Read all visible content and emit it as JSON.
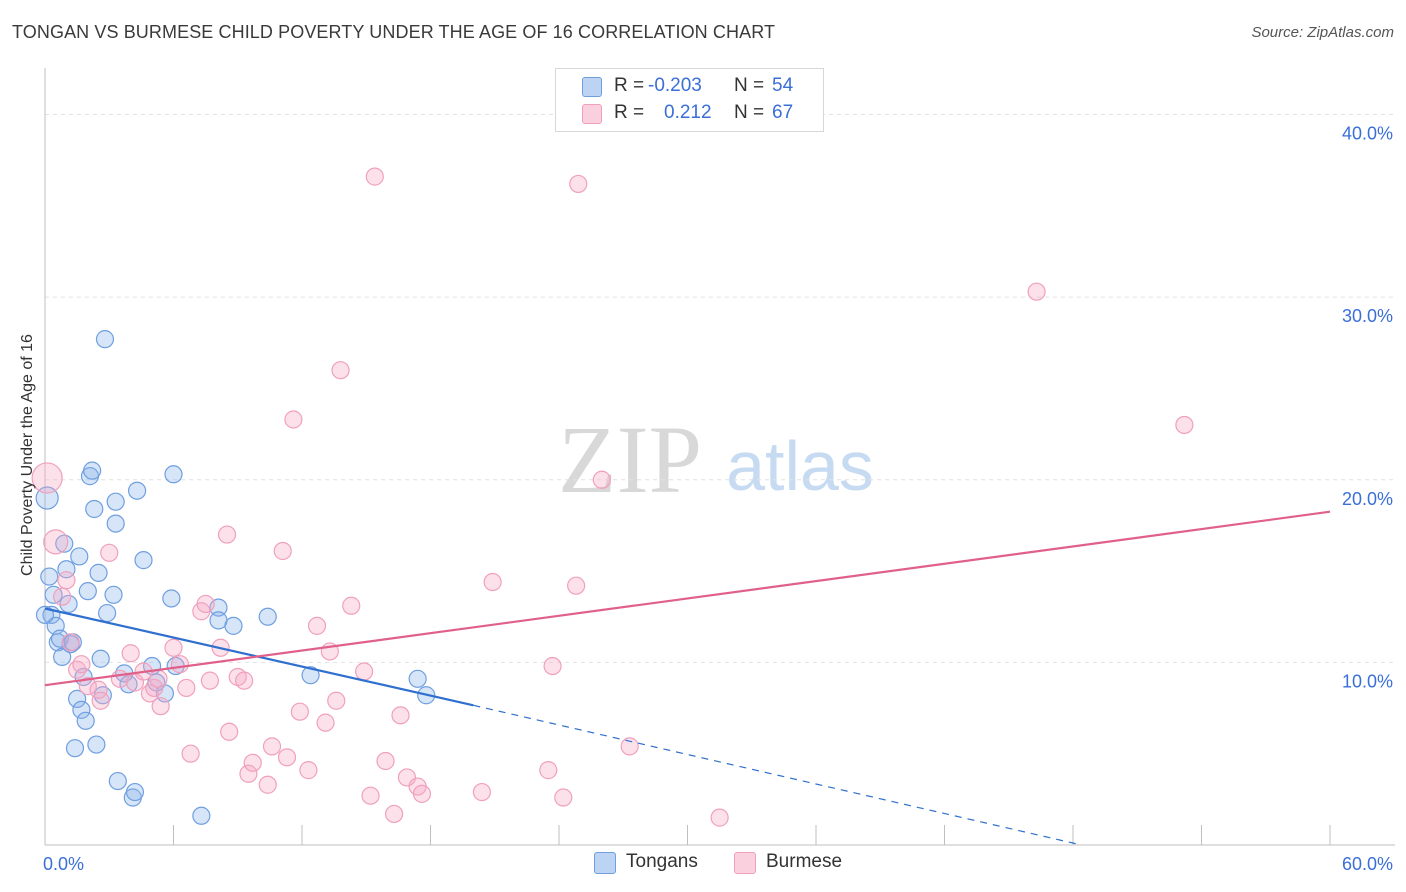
{
  "title": "TONGAN VS BURMESE CHILD POVERTY UNDER THE AGE OF 16 CORRELATION CHART",
  "source": "Source: ZipAtlas.com",
  "watermark": {
    "zip": "ZIP",
    "atlas": "atlas"
  },
  "legend": {
    "tongans": {
      "r_label": "R =",
      "r_value": "-0.203",
      "n_label": "N =",
      "n_value": "54"
    },
    "burmese": {
      "r_label": "R =",
      "r_value": "0.212",
      "n_label": "N =",
      "n_value": "67"
    }
  },
  "bottom_legend": {
    "tongans": "Tongans",
    "burmese": "Burmese"
  },
  "chart_data": {
    "type": "scatter",
    "title": "TONGAN VS BURMESE CHILD POVERTY UNDER THE AGE OF 16 CORRELATION CHART",
    "xlabel": "",
    "ylabel": "Child Poverty Under the Age of 16",
    "xlim": [
      0,
      60
    ],
    "ylim": [
      0,
      42
    ],
    "x_tick_labels": [
      "0.0%",
      "60.0%"
    ],
    "y_ticks": [
      10,
      20,
      30,
      40
    ],
    "y_tick_labels": [
      "10.0%",
      "20.0%",
      "30.0%",
      "40.0%"
    ],
    "grid": true,
    "colors": {
      "tongans": "#6f9fe0",
      "tongans_line": "#2f6fce",
      "burmese": "#f0a0bc",
      "burmese_line": "#e0608a",
      "tick_label": "#3a6fd8"
    },
    "series": [
      {
        "name": "Tongans",
        "points": [
          [
            0.1,
            19.0
          ],
          [
            0.2,
            14.7
          ],
          [
            0.3,
            12.6
          ],
          [
            0.4,
            13.7
          ],
          [
            0.5,
            12.0
          ],
          [
            0.6,
            11.1
          ],
          [
            0.7,
            11.3
          ],
          [
            0.8,
            10.3
          ],
          [
            0.9,
            16.5
          ],
          [
            1.0,
            15.1
          ],
          [
            1.1,
            13.2
          ],
          [
            1.2,
            11.0
          ],
          [
            1.3,
            11.1
          ],
          [
            1.4,
            5.3
          ],
          [
            1.5,
            8.0
          ],
          [
            1.6,
            15.8
          ],
          [
            1.7,
            7.4
          ],
          [
            1.8,
            9.2
          ],
          [
            1.9,
            6.8
          ],
          [
            2.0,
            13.9
          ],
          [
            2.1,
            20.2
          ],
          [
            2.2,
            20.5
          ],
          [
            2.3,
            18.4
          ],
          [
            2.4,
            5.5
          ],
          [
            2.5,
            14.9
          ],
          [
            2.6,
            10.2
          ],
          [
            2.7,
            8.2
          ],
          [
            2.8,
            27.7
          ],
          [
            2.9,
            12.7
          ],
          [
            3.2,
            13.7
          ],
          [
            3.3,
            18.8
          ],
          [
            3.3,
            17.6
          ],
          [
            3.4,
            3.5
          ],
          [
            3.7,
            9.4
          ],
          [
            3.9,
            8.8
          ],
          [
            4.1,
            2.6
          ],
          [
            4.2,
            2.9
          ],
          [
            4.3,
            19.4
          ],
          [
            4.6,
            15.6
          ],
          [
            5.0,
            9.8
          ],
          [
            5.2,
            8.9
          ],
          [
            5.6,
            8.3
          ],
          [
            5.9,
            13.5
          ],
          [
            6.0,
            20.3
          ],
          [
            6.1,
            9.8
          ],
          [
            7.3,
            1.6
          ],
          [
            8.1,
            13.0
          ],
          [
            8.1,
            12.3
          ],
          [
            8.8,
            12.0
          ],
          [
            10.4,
            12.5
          ],
          [
            12.4,
            9.3
          ],
          [
            17.4,
            9.1
          ],
          [
            17.8,
            8.2
          ],
          [
            0.0,
            12.6
          ]
        ]
      },
      {
        "name": "Burmese",
        "points": [
          [
            0.1,
            20.1
          ],
          [
            0.5,
            16.6
          ],
          [
            0.8,
            13.6
          ],
          [
            1.0,
            14.5
          ],
          [
            1.2,
            11.1
          ],
          [
            1.5,
            9.6
          ],
          [
            1.7,
            9.9
          ],
          [
            2.0,
            8.7
          ],
          [
            2.5,
            8.5
          ],
          [
            2.6,
            7.9
          ],
          [
            3.0,
            16.0
          ],
          [
            3.5,
            9.1
          ],
          [
            4.0,
            10.5
          ],
          [
            4.2,
            8.9
          ],
          [
            4.6,
            9.5
          ],
          [
            4.9,
            8.3
          ],
          [
            5.1,
            8.6
          ],
          [
            5.3,
            9.1
          ],
          [
            5.4,
            7.6
          ],
          [
            6.0,
            10.8
          ],
          [
            6.3,
            9.9
          ],
          [
            6.6,
            8.6
          ],
          [
            6.8,
            5.0
          ],
          [
            7.3,
            12.8
          ],
          [
            7.5,
            13.2
          ],
          [
            7.7,
            9.0
          ],
          [
            8.2,
            10.8
          ],
          [
            8.5,
            17.0
          ],
          [
            8.6,
            6.2
          ],
          [
            9.0,
            9.2
          ],
          [
            9.3,
            9.0
          ],
          [
            9.5,
            3.9
          ],
          [
            9.7,
            4.5
          ],
          [
            10.4,
            3.3
          ],
          [
            10.6,
            5.4
          ],
          [
            11.1,
            16.1
          ],
          [
            11.3,
            4.8
          ],
          [
            11.6,
            23.3
          ],
          [
            11.9,
            7.3
          ],
          [
            12.3,
            4.1
          ],
          [
            12.7,
            12.0
          ],
          [
            13.1,
            6.7
          ],
          [
            13.3,
            10.6
          ],
          [
            13.6,
            7.9
          ],
          [
            13.8,
            26.0
          ],
          [
            14.3,
            13.1
          ],
          [
            14.9,
            9.5
          ],
          [
            15.2,
            2.7
          ],
          [
            15.4,
            36.6
          ],
          [
            15.9,
            4.6
          ],
          [
            16.3,
            1.7
          ],
          [
            16.6,
            7.1
          ],
          [
            16.9,
            3.7
          ],
          [
            17.4,
            3.2
          ],
          [
            17.6,
            2.8
          ],
          [
            20.9,
            14.4
          ],
          [
            20.4,
            2.9
          ],
          [
            23.5,
            4.1
          ],
          [
            23.7,
            9.8
          ],
          [
            24.2,
            2.6
          ],
          [
            24.8,
            14.2
          ],
          [
            24.9,
            36.2
          ],
          [
            26.0,
            20.0
          ],
          [
            27.3,
            5.4
          ],
          [
            31.5,
            1.5
          ],
          [
            46.3,
            30.3
          ],
          [
            53.2,
            23.0
          ]
        ]
      }
    ],
    "trend_lines": [
      {
        "name": "Tongans",
        "x_start": 0,
        "y_start": 12.95,
        "x_solid_end": 20,
        "y_solid_end": 7.65,
        "x_dash_end": 48.4,
        "y_dash_end": 0
      },
      {
        "name": "Burmese",
        "x_start": 0,
        "y_start": 8.75,
        "x_end": 60,
        "y_end": 18.25
      }
    ]
  }
}
